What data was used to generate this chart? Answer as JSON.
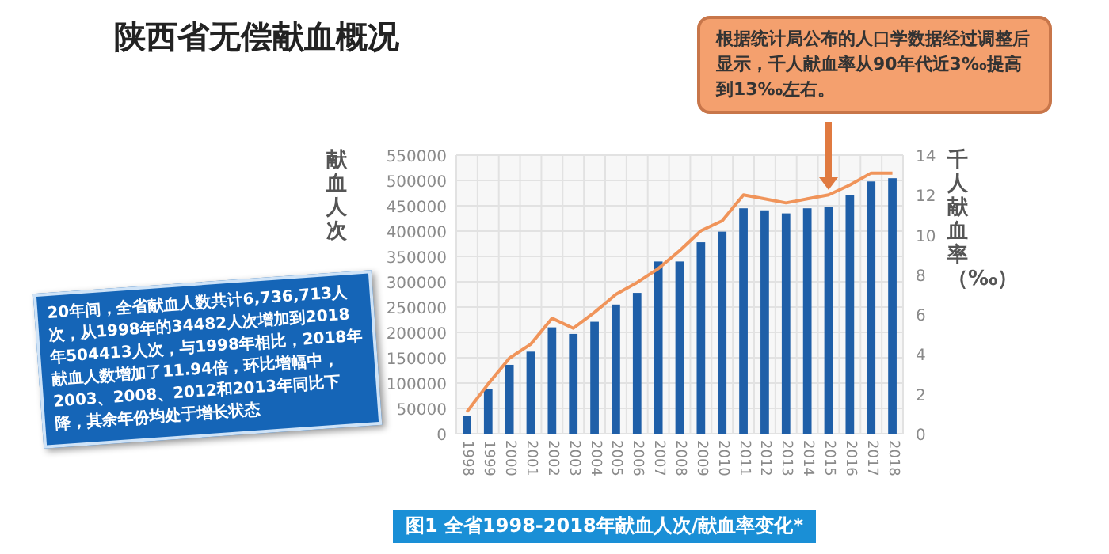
{
  "chart_data": {
    "type": "bar",
    "title": "陕西省无偿献血概况",
    "ylabel": "献血人次",
    "y2label": "千人献血率（‰）",
    "categories": [
      "1998",
      "1999",
      "2000",
      "2001",
      "2002",
      "2003",
      "2004",
      "2005",
      "2006",
      "2007",
      "2008",
      "2009",
      "2010",
      "2011",
      "2012",
      "2013",
      "2014",
      "2015",
      "2016",
      "2017",
      "2018"
    ],
    "series": [
      {
        "color": "#1f5fa8",
        "values": [
          34482,
          89000,
          136000,
          162000,
          210000,
          197000,
          221000,
          255000,
          278000,
          340000,
          340000,
          378000,
          399000,
          445000,
          441000,
          435000,
          445000,
          448000,
          471000,
          498000,
          504413
        ]
      },
      {
        "type": "line",
        "axis": "y2",
        "color": "#f0945a",
        "values": [
          1.1,
          2.5,
          3.8,
          4.5,
          5.8,
          5.3,
          6.1,
          7.0,
          7.6,
          8.3,
          9.2,
          10.2,
          10.7,
          12.0,
          11.8,
          11.6,
          11.8,
          12.0,
          12.5,
          13.1,
          13.1
        ]
      }
    ],
    "ylim": [
      0,
      550000
    ],
    "yticks": [
      0,
      50000,
      100000,
      150000,
      200000,
      250000,
      300000,
      350000,
      400000,
      450000,
      500000,
      550000
    ],
    "y2lim": [
      0,
      14
    ],
    "y2ticks": [
      0,
      2,
      4,
      6,
      8,
      10,
      12,
      14
    ],
    "grid": true,
    "marker": "none",
    "line_style": "solid",
    "annotations": [
      "20年间，全省献血人数共计6,736,713人次，从1998年的34482人次增加到2018年504413人次，与1998年相比，2018年献血人数增加了11.94倍，环比增幅中，2003、2008、2012和2013年同比下降，其余年份均处于增长状态",
      "根据统计局公布的人口学数据经过调整后显示，千人献血率从90年代近3‰提高到13‰左右。",
      "图1  全省1998-2018年献血人次/献血率变化*"
    ]
  }
}
